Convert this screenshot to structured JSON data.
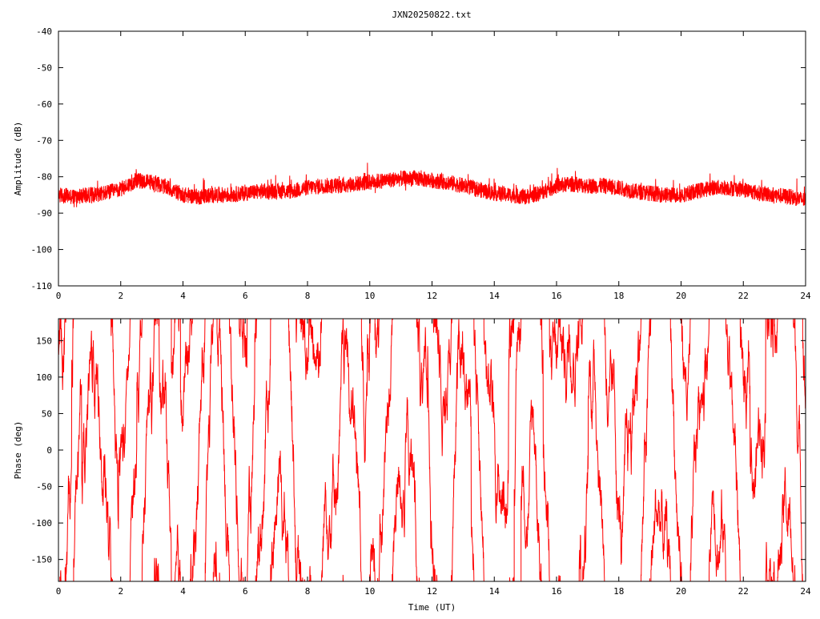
{
  "title": "JXN20250822.txt",
  "colors": {
    "series": "#ff0000",
    "axes": "#000000",
    "background": "#ffffff"
  },
  "chart_data": [
    {
      "type": "line",
      "title": "JXN20250822.txt",
      "xlabel": "",
      "ylabel": "Amplitude (dB)",
      "xlim": [
        0,
        24
      ],
      "ylim": [
        -110,
        -40
      ],
      "x_ticks": [
        "0",
        "2",
        "4",
        "6",
        "8",
        "10",
        "12",
        "14",
        "16",
        "18",
        "20",
        "22",
        "24"
      ],
      "y_ticks": [
        "-40",
        "-50",
        "-60",
        "-70",
        "-80",
        "-90",
        "-100",
        "-110"
      ],
      "grid": false,
      "legend": "none",
      "series": [
        {
          "x": [
            0,
            0.5,
            1.0,
            1.5,
            2.0,
            2.5,
            3.0,
            3.5,
            4.0,
            4.5,
            5.0,
            5.5,
            6.0,
            6.5,
            7.0,
            7.5,
            8.0,
            8.5,
            9.0,
            9.5,
            10.0,
            10.5,
            11.0,
            11.5,
            12.0,
            12.5,
            13.0,
            13.5,
            14.0,
            14.5,
            15.0,
            15.5,
            16.0,
            16.5,
            17.0,
            17.5,
            18.0,
            18.5,
            19.0,
            19.5,
            20.0,
            20.5,
            21.0,
            21.5,
            22.0,
            22.5,
            23.0,
            23.5,
            24.0
          ],
          "values": [
            -85,
            -85.5,
            -85,
            -84.5,
            -83.5,
            -81,
            -81.5,
            -83,
            -85,
            -85.5,
            -85,
            -85,
            -84.5,
            -84,
            -84,
            -84,
            -83,
            -82.5,
            -82.5,
            -82,
            -81.5,
            -81,
            -80.5,
            -80.5,
            -81,
            -81.5,
            -82.5,
            -83.5,
            -84.5,
            -85,
            -85.5,
            -84.5,
            -82.5,
            -82,
            -82.5,
            -82.5,
            -83,
            -84,
            -84.5,
            -85,
            -85,
            -84,
            -83,
            -83,
            -83.5,
            -84.5,
            -85,
            -85.5,
            -86.5
          ],
          "spread_db": 2.2
        }
      ]
    },
    {
      "type": "line",
      "title": "",
      "xlabel": "Time (UT)",
      "ylabel": "Phase (deg)",
      "xlim": [
        0,
        24
      ],
      "ylim": [
        -180,
        180
      ],
      "x_ticks": [
        "0",
        "2",
        "4",
        "6",
        "8",
        "10",
        "12",
        "14",
        "16",
        "18",
        "20",
        "22",
        "24"
      ],
      "y_ticks": [
        "150",
        "100",
        "50",
        "0",
        "-50",
        "-100",
        "-150"
      ],
      "grid": false,
      "legend": "none",
      "series": [
        {
          "pattern": "rapidly wrapping phase spanning full range",
          "range": [
            -180,
            180
          ]
        }
      ]
    }
  ]
}
